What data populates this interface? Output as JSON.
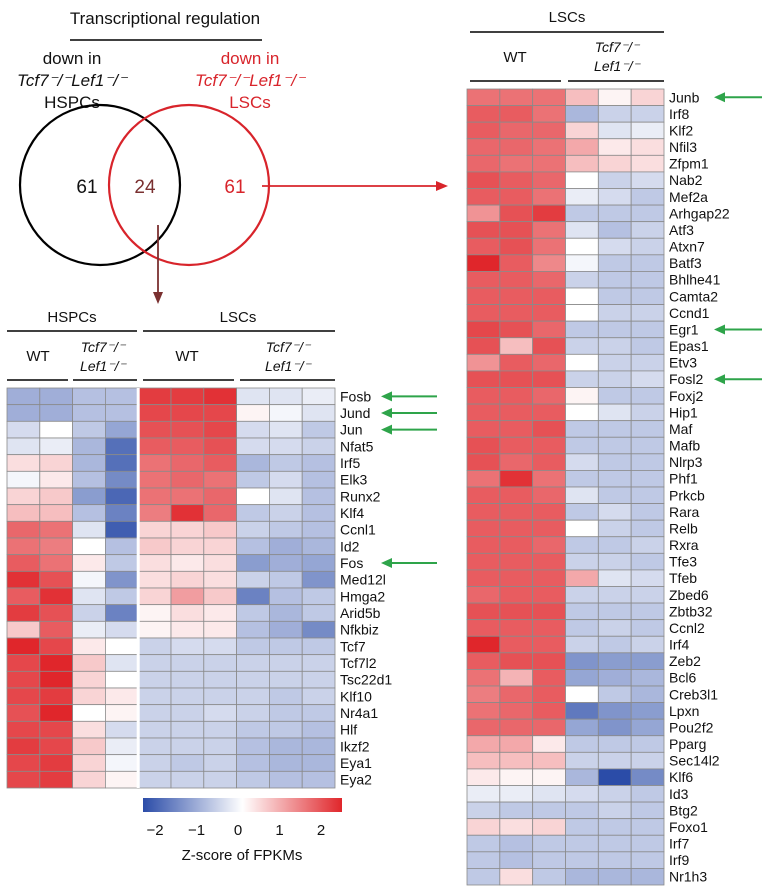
{
  "title": "Transcriptional regulation",
  "venn": {
    "left_label_line1": "down in",
    "left_label_line2": "Tcf7⁻/⁻Lef1⁻/⁻",
    "left_label_line3": "HSPCs",
    "right_label_line1": "down in",
    "right_label_line2": "Tcf7⁻/⁻Lef1⁻/⁻",
    "right_label_line3": "LSCs",
    "left_only": "61",
    "overlap": "24",
    "right_only": "61",
    "colors": {
      "left": "#000000",
      "right": "#d8242b",
      "arrow_down": "#7a3030",
      "arrow_right": "#d8242b"
    }
  },
  "heatmap_left": {
    "group1": "HSPCs",
    "group2": "LSCs",
    "wt_label": "WT",
    "ko_line1": "Tcf7⁻/⁻",
    "ko_line2": "Lef1⁻/⁻",
    "genes": [
      "Fosb",
      "Jund",
      "Jun",
      "Nfat5",
      "Irf5",
      "Elk3",
      "Runx2",
      "Klf4",
      "Ccnl1",
      "Id2",
      "Fos",
      "Med12l",
      "Hmga2",
      "Arid5b",
      "Nfkbiz",
      "Tcf7",
      "Tcf7l2",
      "Tsc22d1",
      "Klf10",
      "Nr4a1",
      "Hlf",
      "Ikzf2",
      "Eya1",
      "Eya2"
    ],
    "arrows": [
      "Fosb",
      "Jund",
      "Jun",
      "Fos"
    ],
    "values": [
      [
        -0.9,
        -0.9,
        -0.7,
        -0.7,
        1.8,
        1.8,
        1.9,
        -0.3,
        -0.3,
        -0.2
      ],
      [
        -0.9,
        -0.9,
        -0.7,
        -0.7,
        1.7,
        1.7,
        1.7,
        0.1,
        -0.1,
        -0.3
      ],
      [
        -0.4,
        0.0,
        -0.6,
        -1.0,
        1.6,
        1.6,
        1.7,
        -0.4,
        -0.3,
        -0.6
      ],
      [
        -0.3,
        -0.2,
        -0.8,
        -1.6,
        1.5,
        1.5,
        1.6,
        -0.4,
        -0.4,
        -0.5
      ],
      [
        0.3,
        0.4,
        -0.8,
        -1.6,
        1.3,
        1.4,
        1.5,
        -0.8,
        -0.6,
        -0.7
      ],
      [
        -0.1,
        0.2,
        -0.7,
        -1.3,
        1.3,
        1.4,
        1.3,
        -0.6,
        -0.4,
        -0.7
      ],
      [
        0.4,
        0.5,
        -1.1,
        -1.7,
        1.3,
        1.3,
        1.4,
        0.0,
        -0.3,
        -0.7
      ],
      [
        0.6,
        0.6,
        -0.7,
        -1.4,
        1.2,
        1.9,
        1.4,
        -0.6,
        -0.5,
        -0.7
      ],
      [
        1.4,
        1.3,
        -0.3,
        -1.8,
        0.4,
        0.4,
        0.5,
        -0.5,
        -0.6,
        -0.7
      ],
      [
        1.3,
        1.2,
        0.0,
        -0.7,
        0.5,
        0.4,
        0.4,
        -0.7,
        -0.9,
        -0.8
      ],
      [
        1.5,
        1.3,
        0.2,
        -0.6,
        0.3,
        0.2,
        0.3,
        -1.1,
        -0.9,
        -1.0
      ],
      [
        1.9,
        1.6,
        -0.1,
        -1.2,
        0.3,
        0.4,
        0.3,
        -0.5,
        -0.6,
        -1.2
      ],
      [
        1.5,
        1.9,
        -0.3,
        -0.6,
        0.4,
        0.9,
        0.5,
        -1.4,
        -0.7,
        -0.6
      ],
      [
        1.8,
        1.6,
        -0.5,
        -1.4,
        0.1,
        0.3,
        0.2,
        -0.6,
        -0.8,
        -0.6
      ],
      [
        0.5,
        1.5,
        -0.2,
        -0.4,
        0.1,
        0.2,
        0.2,
        -0.7,
        -0.9,
        -1.3
      ],
      [
        2.0,
        1.7,
        0.2,
        0.0,
        -0.5,
        -0.4,
        -0.4,
        -0.6,
        -0.6,
        -0.6
      ],
      [
        1.7,
        2.0,
        0.5,
        -0.3,
        -0.5,
        -0.5,
        -0.5,
        -0.5,
        -0.5,
        -0.5
      ],
      [
        1.7,
        2.0,
        0.4,
        0.0,
        -0.5,
        -0.5,
        -0.5,
        -0.5,
        -0.5,
        -0.5
      ],
      [
        1.7,
        1.8,
        0.4,
        0.2,
        -0.5,
        -0.5,
        -0.5,
        -0.5,
        -0.6,
        -0.5
      ],
      [
        1.6,
        2.1,
        0.0,
        0.1,
        -0.5,
        -0.5,
        -0.4,
        -0.5,
        -0.6,
        -0.6
      ],
      [
        1.7,
        1.7,
        0.3,
        -0.4,
        -0.5,
        -0.5,
        -0.5,
        -0.6,
        -0.6,
        -0.7
      ],
      [
        1.8,
        1.7,
        0.5,
        -0.2,
        -0.5,
        -0.5,
        -0.5,
        -0.7,
        -0.8,
        -0.8
      ],
      [
        1.7,
        1.8,
        0.4,
        -0.1,
        -0.5,
        -0.6,
        -0.5,
        -0.7,
        -0.8,
        -0.8
      ],
      [
        1.7,
        1.8,
        0.4,
        0.1,
        -0.5,
        -0.5,
        -0.5,
        -0.6,
        -0.7,
        -0.7
      ]
    ]
  },
  "heatmap_right": {
    "group": "LSCs",
    "wt_label": "WT",
    "ko_line1": "Tcf7⁻/⁻",
    "ko_line2": "Lef1⁻/⁻",
    "genes": [
      "Junb",
      "Irf8",
      "Klf2",
      "Nfil3",
      "Zfpm1",
      "Nab2",
      "Mef2a",
      "Arhgap22",
      "Atf3",
      "Atxn7",
      "Batf3",
      "Bhlhe41",
      "Camta2",
      "Ccnd1",
      "Egr1",
      "Epas1",
      "Etv3",
      "Fosl2",
      "Foxj2",
      "Hip1",
      "Maf",
      "Mafb",
      "Nlrp3",
      "Phf1",
      "Prkcb",
      "Rara",
      "Relb",
      "Rxra",
      "Tfe3",
      "Tfeb",
      "Zbed6",
      "Zbtb32",
      "Ccnl2",
      "Irf4",
      "Zeb2",
      "Bcl6",
      "Creb3l1",
      "Lpxn",
      "Pou2f2",
      "Pparg",
      "Sec14l2",
      "Klf6",
      "Id3",
      "Btg2",
      "Foxo1",
      "Irf7",
      "Irf9",
      "Nr1h3"
    ],
    "arrows": [
      "Junb",
      "Egr1",
      "Fosl2"
    ],
    "values": [
      [
        1.3,
        1.3,
        1.3,
        0.6,
        0.1,
        0.4
      ],
      [
        1.5,
        1.5,
        1.3,
        -0.8,
        -0.5,
        -0.5
      ],
      [
        1.5,
        1.4,
        1.4,
        0.4,
        -0.3,
        -0.2
      ],
      [
        1.4,
        1.4,
        1.3,
        0.8,
        0.2,
        0.3
      ],
      [
        1.4,
        1.3,
        1.3,
        0.6,
        0.4,
        0.3
      ],
      [
        1.6,
        1.5,
        1.4,
        0.0,
        -0.5,
        -0.4
      ],
      [
        1.5,
        1.5,
        1.3,
        -0.2,
        -0.4,
        -0.6
      ],
      [
        1.0,
        1.6,
        1.8,
        -0.6,
        -0.6,
        -0.6
      ],
      [
        1.6,
        1.6,
        1.3,
        -0.3,
        -0.7,
        -0.5
      ],
      [
        1.5,
        1.6,
        1.3,
        0.0,
        -0.4,
        -0.5
      ],
      [
        2.0,
        1.5,
        1.1,
        -0.1,
        -0.6,
        -0.6
      ],
      [
        1.5,
        1.5,
        1.4,
        -0.5,
        -0.6,
        -0.6
      ],
      [
        1.5,
        1.5,
        1.5,
        0.0,
        -0.6,
        -0.6
      ],
      [
        1.5,
        1.5,
        1.5,
        0.0,
        -0.5,
        -0.5
      ],
      [
        1.7,
        1.6,
        1.4,
        -0.6,
        -0.6,
        -0.6
      ],
      [
        1.6,
        0.6,
        1.6,
        -0.5,
        -0.5,
        -0.6
      ],
      [
        1.0,
        1.5,
        1.4,
        0.0,
        -0.5,
        -0.5
      ],
      [
        1.6,
        1.6,
        1.6,
        -0.5,
        -0.5,
        -0.4
      ],
      [
        1.5,
        1.5,
        1.4,
        0.1,
        -0.6,
        -0.6
      ],
      [
        1.5,
        1.5,
        1.5,
        0.0,
        -0.3,
        -0.5
      ],
      [
        1.5,
        1.5,
        1.6,
        -0.6,
        -0.6,
        -0.6
      ],
      [
        1.6,
        1.5,
        1.5,
        -0.6,
        -0.6,
        -0.6
      ],
      [
        1.6,
        1.4,
        1.5,
        -0.4,
        -0.6,
        -0.6
      ],
      [
        1.3,
        1.9,
        1.3,
        -0.6,
        -0.6,
        -0.6
      ],
      [
        1.5,
        1.5,
        1.4,
        -0.3,
        -0.6,
        -0.6
      ],
      [
        1.5,
        1.5,
        1.5,
        -0.6,
        -0.4,
        -0.6
      ],
      [
        1.5,
        1.5,
        1.5,
        0.0,
        -0.5,
        -0.6
      ],
      [
        1.5,
        1.5,
        1.4,
        -0.6,
        -0.6,
        -0.5
      ],
      [
        1.5,
        1.5,
        1.5,
        -0.5,
        -0.5,
        -0.6
      ],
      [
        1.5,
        1.5,
        1.5,
        0.8,
        -0.3,
        -0.4
      ],
      [
        1.4,
        1.5,
        1.5,
        -0.5,
        -0.5,
        -0.5
      ],
      [
        1.6,
        1.6,
        1.6,
        -0.6,
        -0.6,
        -0.6
      ],
      [
        1.5,
        1.5,
        1.5,
        -0.6,
        -0.5,
        -0.6
      ],
      [
        2.0,
        1.5,
        1.5,
        -0.5,
        -0.6,
        -0.5
      ],
      [
        1.5,
        1.6,
        1.6,
        -1.2,
        -1.1,
        -1.1
      ],
      [
        1.3,
        0.7,
        1.5,
        -1.0,
        -0.9,
        -0.8
      ],
      [
        1.2,
        1.4,
        1.5,
        0.0,
        -0.6,
        -0.8
      ],
      [
        1.3,
        1.4,
        1.5,
        -1.5,
        -1.2,
        -1.1
      ],
      [
        1.4,
        1.4,
        1.4,
        -1.0,
        -1.2,
        -1.0
      ],
      [
        0.8,
        0.8,
        0.2,
        -0.6,
        -0.6,
        -0.6
      ],
      [
        0.6,
        0.6,
        0.6,
        -0.5,
        -0.5,
        -0.5
      ],
      [
        0.2,
        0.1,
        0.1,
        -0.8,
        -2.0,
        -1.3
      ],
      [
        -0.2,
        -0.2,
        -0.3,
        -0.4,
        -0.5,
        -0.6
      ],
      [
        -0.5,
        -0.6,
        -0.6,
        -0.6,
        -0.5,
        -0.6
      ],
      [
        0.4,
        0.3,
        0.4,
        -0.6,
        -0.6,
        -0.6
      ],
      [
        -0.6,
        -0.7,
        -0.6,
        -0.6,
        -0.6,
        -0.6
      ],
      [
        -0.6,
        -0.7,
        -0.6,
        -0.6,
        -0.6,
        -0.6
      ],
      [
        -0.6,
        0.3,
        -0.6,
        -0.8,
        -0.8,
        -0.8
      ]
    ]
  },
  "colorbar": {
    "ticks": [
      "−2",
      "−1",
      "0",
      "1",
      "2"
    ],
    "label": "Z-score of FPKMs",
    "colors": {
      "low": "#2b4ca8",
      "mid": "#ffffff",
      "high": "#e0262b"
    }
  },
  "arrow_color": "#2ea44a"
}
